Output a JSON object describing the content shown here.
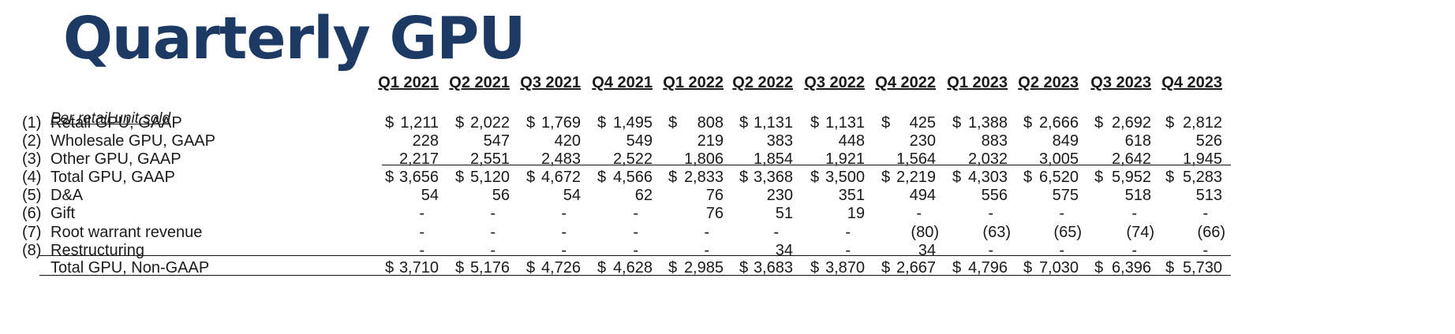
{
  "title": "Quarterly GPU",
  "subheading": "Per retail unit sold",
  "columns": [
    "Q1 2021",
    "Q2 2021",
    "Q3 2021",
    "Q4 2021",
    "Q1 2022",
    "Q2 2022",
    "Q3 2022",
    "Q4 2022",
    "Q1 2023",
    "Q2 2023",
    "Q3 2023",
    "Q4 2023"
  ],
  "rows": [
    {
      "num": "(1)",
      "label": "Retail GPU, GAAP",
      "dollar": true,
      "values": [
        "1,211",
        "2,022",
        "1,769",
        "1,495",
        "808",
        "1,131",
        "1,131",
        "425",
        "1,388",
        "2,666",
        "2,692",
        "2,812"
      ]
    },
    {
      "num": "(2)",
      "label": "Wholesale GPU, GAAP",
      "dollar": false,
      "values": [
        "228",
        "547",
        "420",
        "549",
        "219",
        "383",
        "448",
        "230",
        "883",
        "849",
        "618",
        "526"
      ]
    },
    {
      "num": "(3)",
      "label": "Other GPU, GAAP",
      "dollar": false,
      "values": [
        "2,217",
        "2,551",
        "2,483",
        "2,522",
        "1,806",
        "1,854",
        "1,921",
        "1,564",
        "2,032",
        "3,005",
        "2,642",
        "1,945"
      ]
    },
    {
      "num": "(4)",
      "label": "Total GPU, GAAP",
      "dollar": true,
      "values": [
        "3,656",
        "5,120",
        "4,672",
        "4,566",
        "2,833",
        "3,368",
        "3,500",
        "2,219",
        "4,303",
        "6,520",
        "5,952",
        "5,283"
      ]
    },
    {
      "num": "(5)",
      "label": "D&A",
      "dollar": false,
      "values": [
        "54",
        "56",
        "54",
        "62",
        "76",
        "230",
        "351",
        "494",
        "556",
        "575",
        "518",
        "513"
      ]
    },
    {
      "num": "(6)",
      "label": "Gift",
      "dollar": false,
      "values": [
        "-",
        "-",
        "-",
        "-",
        "76",
        "51",
        "19",
        "-",
        "-",
        "-",
        "-",
        "-"
      ]
    },
    {
      "num": "(7)",
      "label": "Root warrant revenue",
      "dollar": false,
      "values": [
        "-",
        "-",
        "-",
        "-",
        "-",
        "-",
        "-",
        "(80)",
        "(63)",
        "(65)",
        "(74)",
        "(66)"
      ]
    },
    {
      "num": "(8)",
      "label": "Restructuring",
      "dollar": false,
      "values": [
        "-",
        "-",
        "-",
        "-",
        "-",
        "34",
        "-",
        "34",
        "-",
        "-",
        "-",
        "-"
      ]
    },
    {
      "num": "",
      "label": "Total GPU, Non-GAAP",
      "dollar": true,
      "values": [
        "3,710",
        "5,176",
        "4,726",
        "4,628",
        "2,985",
        "3,683",
        "3,870",
        "2,667",
        "4,796",
        "7,030",
        "6,396",
        "5,730"
      ]
    }
  ],
  "dollar_sign": "$"
}
